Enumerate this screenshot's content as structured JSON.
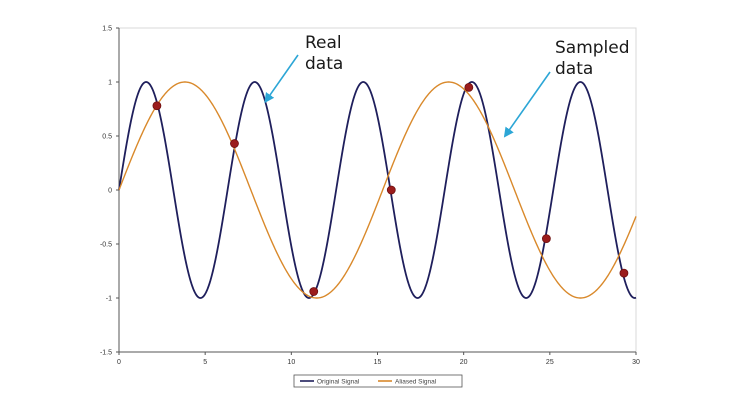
{
  "chart_data": {
    "type": "line",
    "title": "",
    "xlabel": "",
    "ylabel": "",
    "xlim": [
      0,
      30
    ],
    "ylim": [
      -1.5,
      1.5
    ],
    "x_ticks": [
      0,
      5,
      10,
      15,
      20,
      25,
      30
    ],
    "y_ticks": [
      1.5,
      1,
      0.5,
      0,
      -0.5,
      -1,
      -1.5
    ],
    "x_tick_labels": [
      "0",
      "5",
      "10",
      "15",
      "20",
      "25",
      "30"
    ],
    "y_tick_labels": [
      "1.5",
      "1",
      "0.5",
      "0",
      "-0.5",
      "-1",
      "-1.5"
    ],
    "grid": false,
    "legend_position": "bottom",
    "series": [
      {
        "name": "Original Signal",
        "color": "#1f1f5c",
        "function": "sin",
        "amplitude": 1,
        "period": 6.3
      },
      {
        "name": "Aliased Signal",
        "color": "#d9892b",
        "function": "sin",
        "amplitude": 1,
        "period": 15.3
      }
    ],
    "samples": {
      "color": "#9b1c1c",
      "points": [
        {
          "x": 2.2,
          "y": 0.78
        },
        {
          "x": 6.7,
          "y": 0.43
        },
        {
          "x": 11.3,
          "y": -0.94
        },
        {
          "x": 15.8,
          "y": 0.0
        },
        {
          "x": 20.3,
          "y": 0.95
        },
        {
          "x": 24.8,
          "y": -0.45
        },
        {
          "x": 29.3,
          "y": -0.77
        }
      ]
    },
    "annotations": [
      {
        "id": "real",
        "lines": [
          "Real",
          "data"
        ],
        "arrow_color": "#2ca6d6",
        "target": {
          "x": 8.5,
          "y": 0.82
        }
      },
      {
        "id": "sampled",
        "lines": [
          "Sampled",
          "data"
        ],
        "arrow_color": "#2ca6d6",
        "target": {
          "x": 22.4,
          "y": 0.5
        }
      }
    ]
  }
}
